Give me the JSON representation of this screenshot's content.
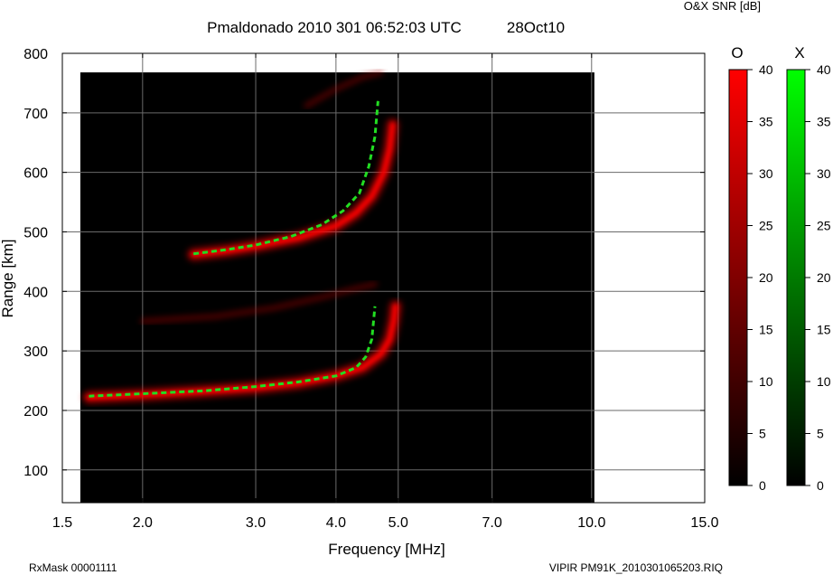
{
  "page": {
    "colorbar_title": "O&X SNR [dB]",
    "footer_left": "RxMask 00001111",
    "footer_right": "VIPIR  PM91K_2010301065203.RIQ"
  },
  "chart_data": {
    "type": "heatmap",
    "title": "Pmaldonado 2010 301 06:52:03 UTC",
    "title_date": "28Oct10",
    "xlabel": "Frequency [MHz]",
    "ylabel": "Range [km]",
    "x_scale": "log",
    "xlim": [
      1.5,
      15.0
    ],
    "ylim": [
      45,
      800
    ],
    "x_ticks": [
      1.5,
      2.0,
      3.0,
      4.0,
      5.0,
      7.0,
      10.0,
      15.0
    ],
    "x_tick_labels": [
      "1.5",
      "2.0",
      "3.0",
      "4.0",
      "5.0",
      "7.0",
      "10.0",
      "15.0"
    ],
    "y_ticks": [
      100,
      200,
      300,
      400,
      500,
      600,
      700,
      800
    ],
    "y_tick_labels": [
      "100",
      "200",
      "300",
      "400",
      "500",
      "600",
      "700",
      "800"
    ],
    "data_extent": {
      "x": [
        1.6,
        10.1
      ],
      "y": [
        45,
        768
      ]
    },
    "grid": true,
    "background_color": "#000000",
    "colorbars": [
      {
        "label": "O",
        "min": 0,
        "max": 40,
        "ticks": [
          0,
          5,
          10,
          15,
          20,
          25,
          30,
          35,
          40
        ],
        "tick_labels": [
          "0",
          "5",
          "10",
          "15",
          "20",
          "25",
          "30",
          "35",
          "40"
        ],
        "color_low": "#000000",
        "color_high": "#ff0000"
      },
      {
        "label": "X",
        "min": 0,
        "max": 40,
        "ticks": [
          0,
          5,
          10,
          15,
          20,
          25,
          30,
          35,
          40
        ],
        "tick_labels": [
          "0",
          "5",
          "10",
          "15",
          "20",
          "25",
          "30",
          "35",
          "40"
        ],
        "color_low": "#000000",
        "color_high": "#00ff00"
      }
    ],
    "series": [
      {
        "mode": "O",
        "color": "#ff0000",
        "x": [
          1.65,
          2.0,
          2.5,
          3.0,
          3.5,
          4.0,
          4.4,
          4.7,
          4.85,
          4.92,
          4.95
        ],
        "y": [
          222,
          226,
          232,
          238,
          246,
          258,
          272,
          295,
          320,
          350,
          375
        ]
      },
      {
        "mode": "X",
        "color": "#22dd22",
        "x": [
          1.65,
          2.0,
          2.5,
          3.0,
          3.5,
          4.0,
          4.3,
          4.45,
          4.55,
          4.6
        ],
        "y": [
          224,
          228,
          233,
          240,
          248,
          258,
          272,
          290,
          320,
          375
        ]
      },
      {
        "mode": "O",
        "color": "#ff0000",
        "x": [
          2.4,
          2.7,
          3.0,
          3.5,
          4.0,
          4.3,
          4.55,
          4.75,
          4.85,
          4.9
        ],
        "y": [
          462,
          468,
          476,
          490,
          510,
          532,
          560,
          600,
          640,
          680
        ]
      },
      {
        "mode": "X",
        "color": "#22dd22",
        "x": [
          2.4,
          2.7,
          3.0,
          3.4,
          3.8,
          4.1,
          4.35,
          4.5,
          4.6,
          4.65
        ],
        "y": [
          463,
          470,
          478,
          492,
          512,
          535,
          565,
          610,
          660,
          720
        ]
      },
      {
        "mode": "O",
        "color": "#aa0000",
        "x": [
          2.0,
          2.6,
          3.2,
          3.8,
          4.3,
          4.6
        ],
        "y": [
          350,
          358,
          372,
          390,
          405,
          412
        ]
      },
      {
        "mode": "O",
        "color": "#aa0000",
        "x": [
          3.6,
          4.0,
          4.4,
          4.7
        ],
        "y": [
          712,
          740,
          760,
          768
        ]
      }
    ]
  }
}
